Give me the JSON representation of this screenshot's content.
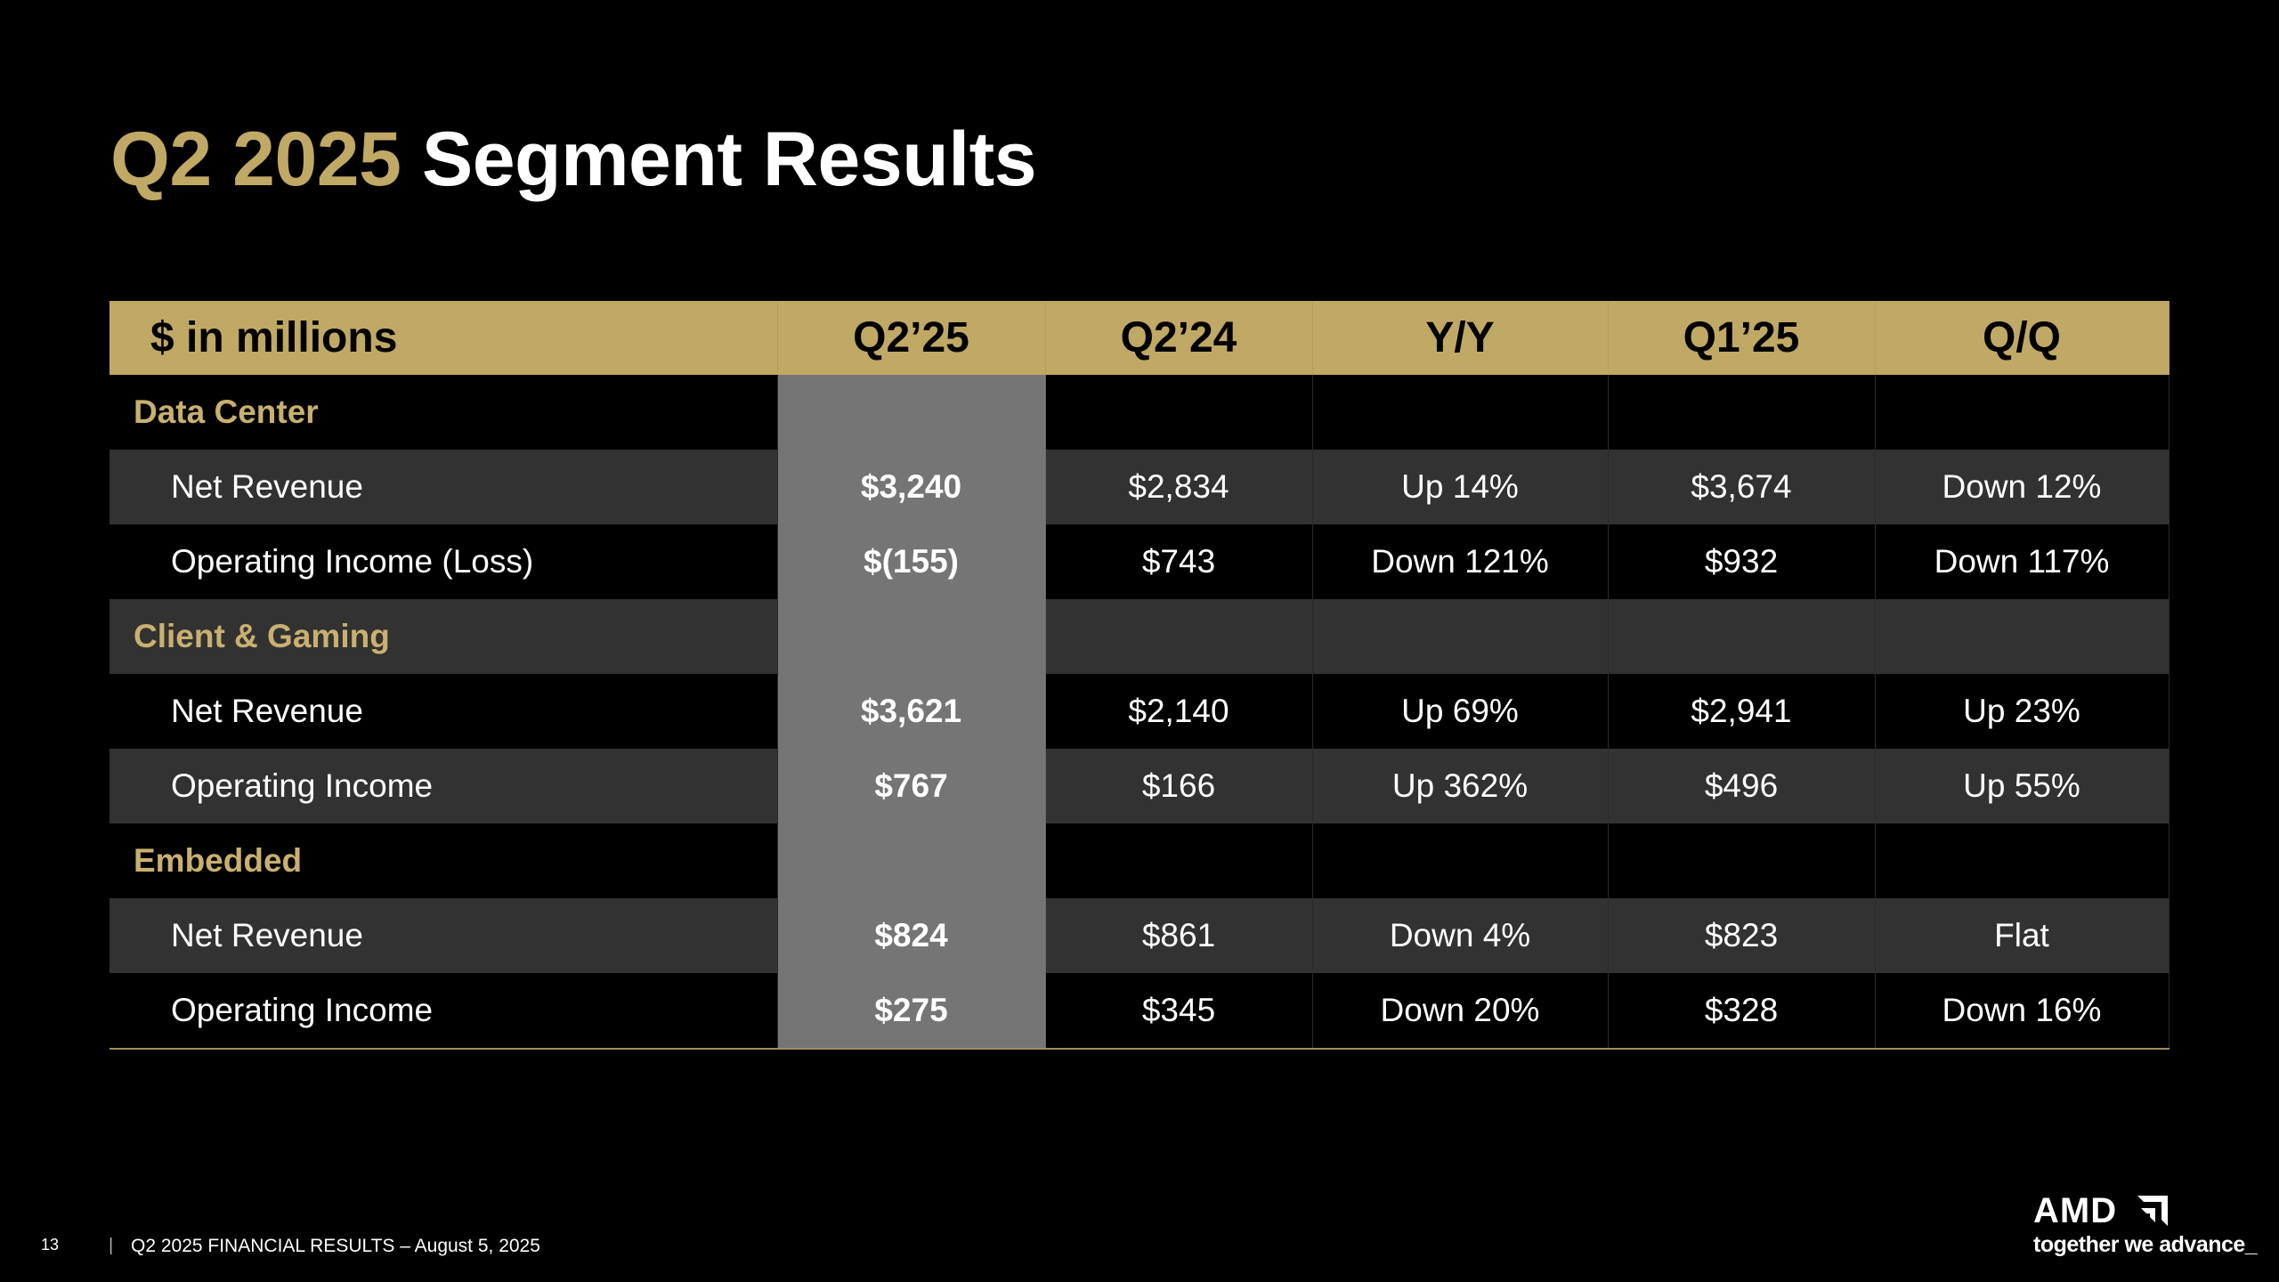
{
  "slide": {
    "title_year": "Q2 2025",
    "title_rest": "Segment Results"
  },
  "table": {
    "headers": [
      "$ in millions",
      "Q2’25",
      "Q2’24",
      "Y/Y",
      "Q1’25",
      "Q/Q"
    ],
    "sections": [
      {
        "name": "Data Center",
        "rows": [
          {
            "metric": "Net Revenue",
            "q2_25": "$3,240",
            "q2_24": "$2,834",
            "yy": "Up 14%",
            "q1_25": "$3,674",
            "qq": "Down 12%"
          },
          {
            "metric": "Operating Income (Loss)",
            "q2_25": "$(155)",
            "q2_24": "$743",
            "yy": "Down 121%",
            "q1_25": "$932",
            "qq": "Down 117%"
          }
        ]
      },
      {
        "name": "Client & Gaming",
        "rows": [
          {
            "metric": "Net Revenue",
            "q2_25": "$3,621",
            "q2_24": "$2,140",
            "yy": "Up 69%",
            "q1_25": "$2,941",
            "qq": "Up 23%"
          },
          {
            "metric": "Operating Income",
            "q2_25": "$767",
            "q2_24": "$166",
            "yy": "Up 362%",
            "q1_25": "$496",
            "qq": "Up 55%"
          }
        ]
      },
      {
        "name": "Embedded",
        "rows": [
          {
            "metric": "Net Revenue",
            "q2_25": "$824",
            "q2_24": "$861",
            "yy": "Down 4%",
            "q1_25": "$823",
            "qq": "Flat"
          },
          {
            "metric": "Operating Income",
            "q2_25": "$275",
            "q2_24": "$345",
            "yy": "Down 20%",
            "q1_25": "$328",
            "qq": "Down 16%"
          }
        ]
      }
    ]
  },
  "footer": {
    "page_number": "13",
    "separator": "|",
    "text": "Q2 2025 FINANCIAL RESULTS – August 5, 2025"
  },
  "logo": {
    "wordmark": "AMD",
    "tagline": "together we advance_",
    "icon": "amd-arrow-icon"
  },
  "colors": {
    "background": "#000000",
    "gold": "#c0a865",
    "row_grey": "#323232",
    "highlight_column": "#757575"
  }
}
